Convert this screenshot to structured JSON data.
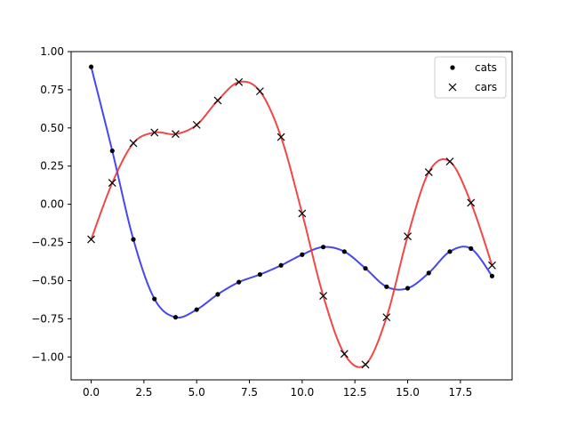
{
  "chart_data": {
    "type": "line",
    "title": "",
    "xlabel": "",
    "ylabel": "",
    "xlim": [
      -0.95,
      19.95
    ],
    "ylim": [
      -1.15,
      1.0
    ],
    "xticks": [
      0.0,
      2.5,
      5.0,
      7.5,
      10.0,
      12.5,
      15.0,
      17.5
    ],
    "xtick_labels": [
      "0.0",
      "2.5",
      "5.0",
      "7.5",
      "10.0",
      "12.5",
      "15.0",
      "17.5"
    ],
    "yticks": [
      -1.0,
      -0.75,
      -0.5,
      -0.25,
      0.0,
      0.25,
      0.5,
      0.75,
      1.0
    ],
    "ytick_labels": [
      "−1.00",
      "−0.75",
      "−0.50",
      "−0.25",
      "0.00",
      "0.25",
      "0.50",
      "0.75",
      "1.00"
    ],
    "grid": false,
    "legend_position": "top-right",
    "x": [
      0,
      1,
      2,
      3,
      4,
      5,
      6,
      7,
      8,
      9,
      10,
      11,
      12,
      13,
      14,
      15,
      16,
      17,
      18,
      19
    ],
    "series": [
      {
        "name": "cats",
        "marker": "dot",
        "line_color": "#3333ee",
        "marker_color": "#000000",
        "values": [
          0.9,
          0.35,
          -0.23,
          -0.62,
          -0.74,
          -0.69,
          -0.59,
          -0.51,
          -0.46,
          -0.4,
          -0.33,
          -0.28,
          -0.31,
          -0.42,
          -0.54,
          -0.55,
          -0.45,
          -0.31,
          -0.29,
          -0.47
        ]
      },
      {
        "name": "cars",
        "marker": "x",
        "line_color": "#ee3333",
        "marker_color": "#000000",
        "values": [
          -0.23,
          0.14,
          0.4,
          0.47,
          0.46,
          0.52,
          0.68,
          0.8,
          0.74,
          0.44,
          -0.06,
          -0.6,
          -0.98,
          -1.05,
          -0.74,
          -0.21,
          0.21,
          0.28,
          0.01,
          -0.4
        ]
      }
    ]
  }
}
